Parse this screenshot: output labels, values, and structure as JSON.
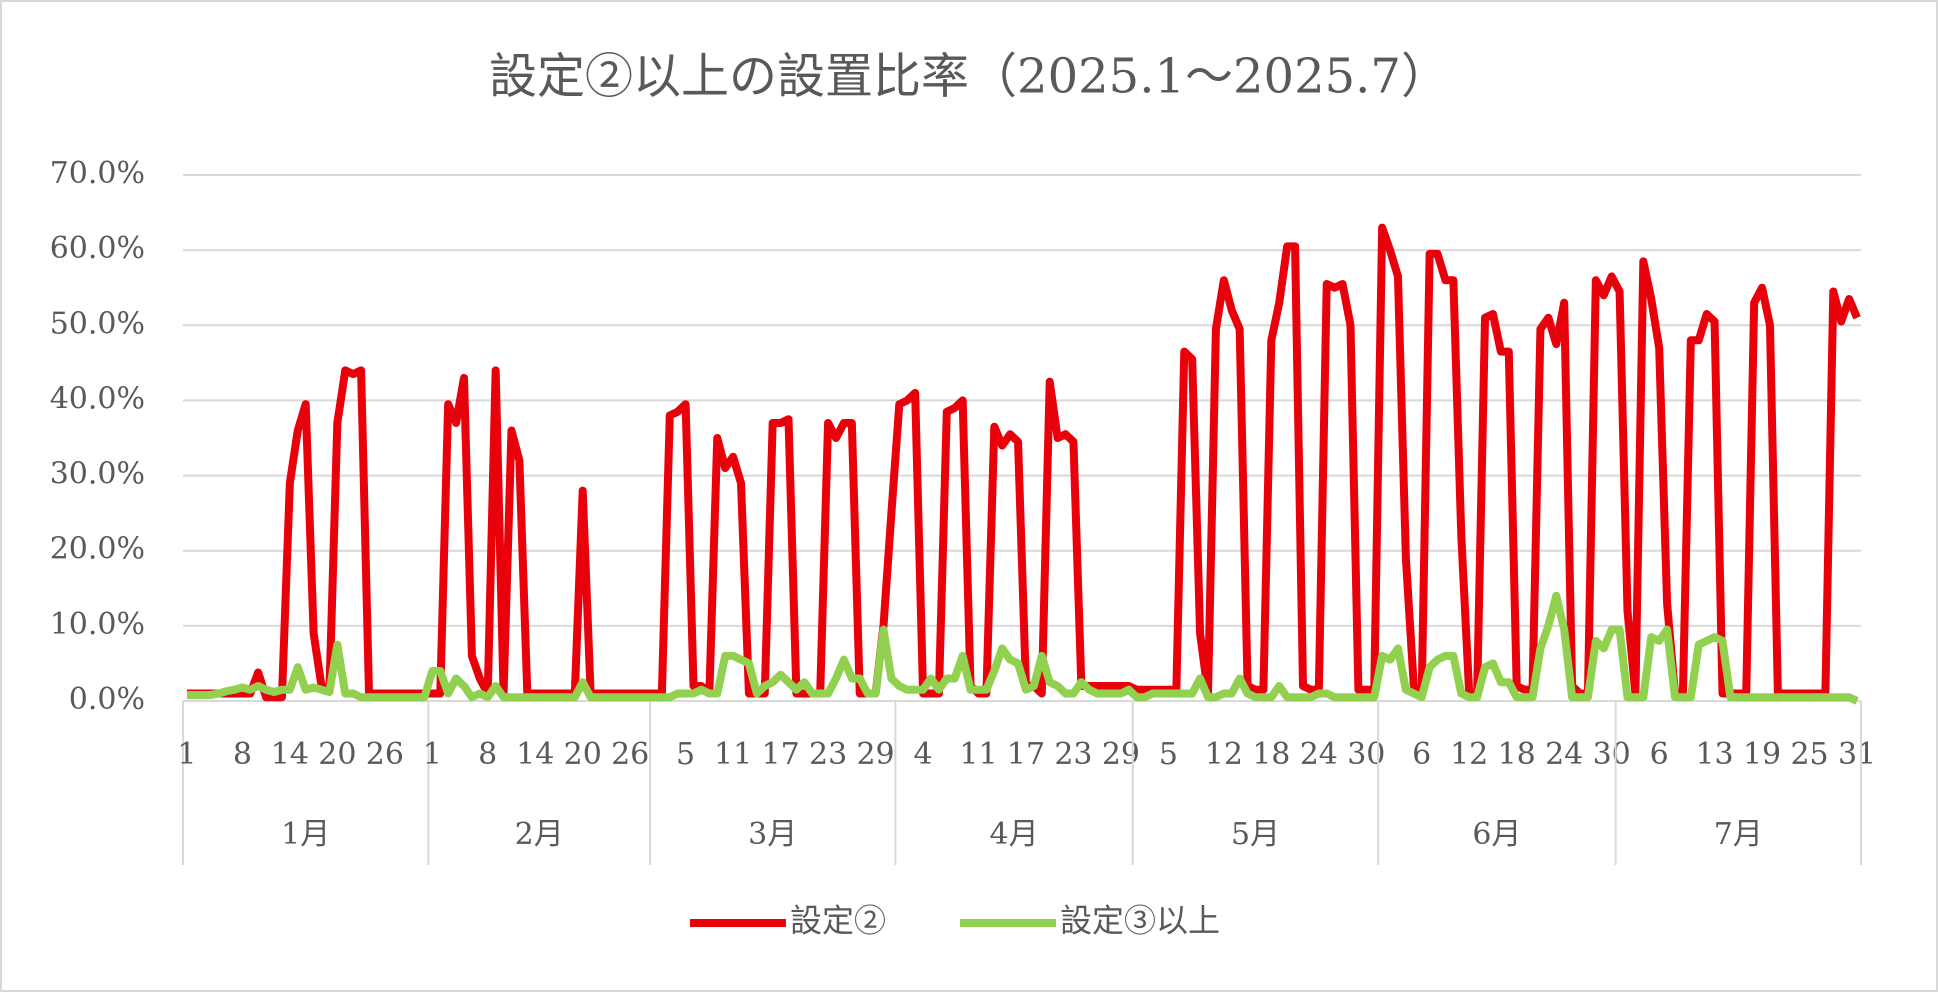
{
  "chart_data": {
    "type": "line",
    "title": "設定②以上の設置比率（2025.1～2025.7）",
    "months": [
      {
        "name": "1月",
        "days": [
          "1",
          null,
          null,
          null,
          null,
          null,
          null,
          "8",
          null,
          null,
          null,
          null,
          null,
          "14",
          null,
          null,
          null,
          null,
          null,
          "20",
          null,
          null,
          null,
          null,
          null,
          "26",
          null,
          null,
          null,
          null,
          null
        ]
      },
      {
        "name": "2月",
        "days": [
          "1",
          null,
          null,
          null,
          null,
          null,
          null,
          "8",
          null,
          null,
          null,
          null,
          null,
          "14",
          null,
          null,
          null,
          null,
          null,
          "20",
          null,
          null,
          null,
          null,
          null,
          "26",
          null,
          null
        ]
      },
      {
        "name": "3月",
        "days": [
          null,
          null,
          null,
          null,
          "5",
          null,
          null,
          null,
          null,
          null,
          "11",
          null,
          null,
          null,
          null,
          null,
          "17",
          null,
          null,
          null,
          null,
          null,
          "23",
          null,
          null,
          null,
          null,
          null,
          "29",
          null,
          null
        ]
      },
      {
        "name": "4月",
        "days": [
          null,
          null,
          null,
          "4",
          null,
          null,
          null,
          null,
          null,
          null,
          "11",
          null,
          null,
          null,
          null,
          null,
          "17",
          null,
          null,
          null,
          null,
          null,
          "23",
          null,
          null,
          null,
          null,
          null,
          "29",
          null
        ]
      },
      {
        "name": "5月",
        "days": [
          null,
          null,
          null,
          null,
          "5",
          null,
          null,
          null,
          null,
          null,
          null,
          "12",
          null,
          null,
          null,
          null,
          null,
          "18",
          null,
          null,
          null,
          null,
          null,
          "24",
          null,
          null,
          null,
          null,
          null,
          "30",
          null
        ]
      },
      {
        "name": "6月",
        "days": [
          null,
          null,
          null,
          null,
          null,
          "6",
          null,
          null,
          null,
          null,
          null,
          "12",
          null,
          null,
          null,
          null,
          null,
          "18",
          null,
          null,
          null,
          null,
          null,
          "24",
          null,
          null,
          null,
          null,
          null,
          "30"
        ]
      },
      {
        "name": "7月",
        "days": [
          null,
          null,
          null,
          null,
          null,
          "6",
          null,
          null,
          null,
          null,
          null,
          null,
          "13",
          null,
          null,
          null,
          null,
          null,
          "19",
          null,
          null,
          null,
          null,
          null,
          "25",
          null,
          null,
          null,
          null,
          null,
          "31"
        ]
      }
    ],
    "series": [
      {
        "name": "設定②",
        "color": "#e8000b",
        "values": [
          1,
          1,
          1,
          1,
          1,
          1,
          1,
          1,
          1,
          3.8,
          0.5,
          0.5,
          0.5,
          29,
          36,
          39.5,
          9,
          2,
          1.5,
          37,
          44,
          43.5,
          44,
          1,
          1,
          1,
          1,
          1,
          1,
          1,
          1,
          1,
          1,
          39.5,
          37,
          43,
          6,
          3,
          1,
          44,
          1,
          36,
          32,
          1,
          1,
          1,
          1,
          1,
          1,
          1,
          28,
          1,
          1,
          1,
          1,
          1,
          1,
          1,
          1,
          1,
          1,
          38,
          38.5,
          39.5,
          2,
          2,
          1,
          35,
          31,
          32.5,
          29,
          1,
          1,
          1,
          37,
          37,
          37.5,
          1,
          1,
          1,
          1,
          37,
          35,
          37,
          37,
          1,
          1,
          1,
          10,
          25,
          39.5,
          40,
          41,
          1,
          1,
          1,
          38.5,
          39,
          40,
          2,
          1,
          1,
          36.5,
          34,
          35.5,
          34.5,
          2,
          2,
          1,
          42.5,
          35,
          35.5,
          34.5,
          2,
          2,
          2,
          2,
          2,
          2,
          2,
          1.5,
          1.5,
          1.5,
          1.5,
          1.5,
          1.5,
          46.5,
          45.5,
          9,
          1,
          49.5,
          56,
          52,
          49.5,
          2,
          1.5,
          1.5,
          48,
          53,
          60.5,
          60.5,
          2,
          1.5,
          1.5,
          55.5,
          55,
          55.5,
          50,
          1.5,
          1.5,
          1.5,
          63,
          60,
          56.5,
          19,
          2,
          1,
          59.5,
          59.5,
          56,
          56,
          22,
          1,
          1,
          51,
          51.5,
          46.5,
          46.5,
          2,
          1.5,
          1.5,
          49.5,
          51,
          47.5,
          53,
          2,
          1,
          1,
          56,
          54,
          56.5,
          54.5,
          12,
          1,
          58.5,
          53.5,
          47,
          13,
          1,
          1,
          48,
          48,
          51.5,
          50.5,
          1,
          1,
          1,
          1,
          53,
          55,
          50,
          1,
          1,
          1,
          1,
          1,
          1,
          1,
          54.5,
          50.5,
          53.5,
          51
        ]
      },
      {
        "name": "設定③以上",
        "color": "#92d050",
        "values": [
          0.8,
          0.8,
          0.8,
          0.8,
          1,
          1.3,
          1.5,
          1.8,
          1.5,
          2,
          1.5,
          1.2,
          1.5,
          1.5,
          4.5,
          1.5,
          1.8,
          1.5,
          1.2,
          7.5,
          1,
          1,
          0.5,
          0.5,
          0.5,
          0.5,
          0.5,
          0.5,
          0.5,
          0.5,
          0.5,
          4,
          4,
          1,
          3,
          2,
          0.5,
          1,
          0.5,
          2,
          0.5,
          0.5,
          0.5,
          0.5,
          0.5,
          0.5,
          0.5,
          0.5,
          0.5,
          0.5,
          2.5,
          0.5,
          0.5,
          0.5,
          0.5,
          0.5,
          0.5,
          0.5,
          0.5,
          0.5,
          0.5,
          0.5,
          1,
          1,
          1,
          1.5,
          1,
          1,
          6,
          6,
          5.5,
          5,
          1,
          2,
          2.5,
          3.5,
          2.5,
          1.5,
          2.5,
          1,
          1,
          1,
          3,
          5.5,
          3,
          3,
          1,
          1,
          9.5,
          3,
          2,
          1.5,
          1.5,
          1.5,
          3,
          1.5,
          3,
          3,
          6,
          1.5,
          1.5,
          1.5,
          4,
          7,
          5.5,
          5,
          1.5,
          2,
          6,
          2.5,
          2,
          1,
          1,
          2.5,
          1.5,
          1,
          1,
          1,
          1,
          1.5,
          0.5,
          0.5,
          1,
          1,
          1,
          1,
          1,
          1,
          3,
          0.5,
          0.5,
          1,
          1,
          3,
          1,
          0.5,
          0.5,
          0.5,
          2,
          0.5,
          0.5,
          0.5,
          0.5,
          1,
          1,
          0.5,
          0.5,
          0.5,
          0.5,
          0.5,
          0.5,
          6,
          5.5,
          7,
          1.5,
          1,
          0.5,
          4.5,
          5.5,
          6,
          6,
          1,
          0.5,
          0.5,
          4.5,
          5,
          2.5,
          2.5,
          0.5,
          0.5,
          0.5,
          7,
          10,
          14,
          9.5,
          0.5,
          0.5,
          0.5,
          8,
          7,
          9.5,
          9.5,
          0.5,
          0.5,
          0.5,
          8.5,
          8,
          9.5,
          0.5,
          0.5,
          0.5,
          7.5,
          8,
          8.5,
          8,
          0.5,
          0.5,
          0.5,
          0.5,
          0.5,
          0.5,
          0.5,
          0.5,
          0.5,
          0.5,
          0.5,
          0.5,
          0.5,
          0.5,
          0.5,
          0.5,
          0
        ]
      }
    ],
    "ylim": [
      0,
      70
    ],
    "yticks": [
      {
        "value": 0,
        "label": "0.0%"
      },
      {
        "value": 10,
        "label": "10.0%"
      },
      {
        "value": 20,
        "label": "20.0%"
      },
      {
        "value": 30,
        "label": "30.0%"
      },
      {
        "value": 40,
        "label": "40.0%"
      },
      {
        "value": 50,
        "label": "50.0%"
      },
      {
        "value": 60,
        "label": "60.0%"
      },
      {
        "value": 70,
        "label": "70.0%"
      }
    ],
    "grid": true,
    "legend": "bottom"
  }
}
